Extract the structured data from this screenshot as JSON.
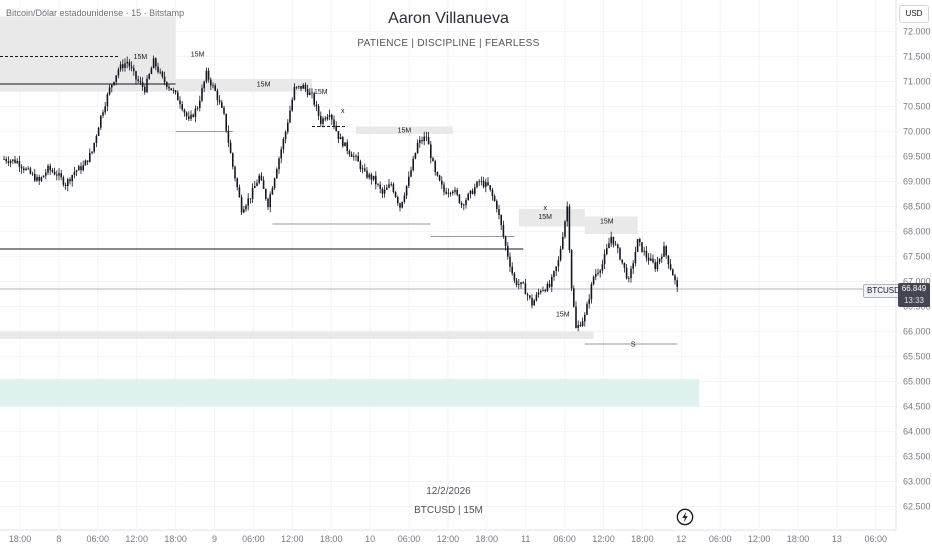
{
  "symbol_title": "Bitcoin/Dólar estadounidense · 15 · Bitstamp",
  "watermark": {
    "title": "Aaron Villanueva",
    "subtitle": "PATIENCE  |  DISCIPLINE  |  FEARLESS",
    "date": "12/2/2026",
    "symbol": "BTCUSD | 15M"
  },
  "currency": "USD",
  "symbol_tag": "BTCUSD",
  "last_price": "66.849",
  "countdown": "13:33",
  "icons": {
    "logo": "tradingview-logo-icon"
  },
  "colors": {
    "candle": "#131722",
    "zone_grey": "#e9e9ea",
    "zone_teal": "#dff2ef",
    "grid": "#f3f4f6"
  },
  "chart_data": {
    "type": "candlestick",
    "title": "",
    "xlabel": "",
    "ylabel": "",
    "ylim": [
      62000,
      72500
    ],
    "y_ticks": [
      "72.000",
      "71.500",
      "71.000",
      "70.500",
      "70.000",
      "69.500",
      "69.000",
      "68.500",
      "68.000",
      "67.500",
      "67.000",
      "66.500",
      "66.000",
      "65.500",
      "65.000",
      "64.500",
      "64.000",
      "63.500",
      "63.000",
      "62.500"
    ],
    "x_ticks": [
      "18:00",
      "8",
      "06:00",
      "12:00",
      "18:00",
      "9",
      "06:00",
      "12:00",
      "18:00",
      "10",
      "06:00",
      "12:00",
      "18:00",
      "11",
      "06:00",
      "12:00",
      "18:00",
      "12",
      "06:00",
      "12:00",
      "18:00",
      "13",
      "06:00"
    ],
    "price_anchors": [
      [
        0,
        69450
      ],
      [
        3,
        69400
      ],
      [
        6,
        69150
      ],
      [
        8,
        69000
      ],
      [
        10,
        69250
      ],
      [
        12,
        69150
      ],
      [
        14,
        68950
      ],
      [
        16,
        69200
      ],
      [
        18,
        69300
      ],
      [
        20,
        69600
      ],
      [
        22,
        70300
      ],
      [
        24,
        70850
      ],
      [
        26,
        71250
      ],
      [
        28,
        71400
      ],
      [
        30,
        71050
      ],
      [
        32,
        70850
      ],
      [
        34,
        71400
      ],
      [
        36,
        71050
      ],
      [
        38,
        70850
      ],
      [
        40,
        70600
      ],
      [
        42,
        70200
      ],
      [
        44,
        70500
      ],
      [
        46,
        71150
      ],
      [
        48,
        70800
      ],
      [
        50,
        70300
      ],
      [
        52,
        69300
      ],
      [
        54,
        68450
      ],
      [
        56,
        68700
      ],
      [
        58,
        69100
      ],
      [
        60,
        68550
      ],
      [
        62,
        69300
      ],
      [
        64,
        70000
      ],
      [
        66,
        70850
      ],
      [
        68,
        70900
      ],
      [
        70,
        70700
      ],
      [
        72,
        70200
      ],
      [
        74,
        70400
      ],
      [
        76,
        69900
      ],
      [
        78,
        69650
      ],
      [
        80,
        69450
      ],
      [
        82,
        69150
      ],
      [
        84,
        69050
      ],
      [
        86,
        68750
      ],
      [
        88,
        68950
      ],
      [
        90,
        68500
      ],
      [
        92,
        69050
      ],
      [
        94,
        69750
      ],
      [
        96,
        69900
      ],
      [
        98,
        69150
      ],
      [
        100,
        68800
      ],
      [
        102,
        68850
      ],
      [
        104,
        68550
      ],
      [
        106,
        68750
      ],
      [
        108,
        69000
      ],
      [
        110,
        68900
      ],
      [
        112,
        68500
      ],
      [
        114,
        67700
      ],
      [
        116,
        67000
      ],
      [
        118,
        66900
      ],
      [
        120,
        66550
      ],
      [
        122,
        66850
      ],
      [
        124,
        66900
      ],
      [
        126,
        67400
      ],
      [
        128,
        68500
      ],
      [
        129,
        66900
      ],
      [
        130,
        66050
      ],
      [
        132,
        66300
      ],
      [
        134,
        67100
      ],
      [
        136,
        67350
      ],
      [
        138,
        67900
      ],
      [
        140,
        67500
      ],
      [
        142,
        67000
      ],
      [
        144,
        67800
      ],
      [
        146,
        67500
      ],
      [
        148,
        67300
      ],
      [
        150,
        67650
      ],
      [
        152,
        67150
      ],
      [
        153,
        66850
      ]
    ],
    "zones": [
      {
        "label": "15M",
        "from": 70800,
        "to": 72300
      },
      {
        "label": "15M",
        "from": 70800,
        "to": 71050
      },
      {
        "label": "15M",
        "from": 69950,
        "to": 70100
      },
      {
        "label": "15M",
        "from": 68100,
        "to": 68450
      },
      {
        "label": "15M",
        "from": 67950,
        "to": 68300
      },
      {
        "label": "",
        "from": 65850,
        "to": 66000
      },
      {
        "label": "",
        "from": 64500,
        "to": 65050
      }
    ],
    "levels": [
      67650,
      68150,
      67900,
      70950,
      70000,
      65750
    ],
    "annotations": [
      "15M",
      "15M",
      "15M",
      "15M",
      "15M",
      "15M",
      "15M",
      "15M",
      "x",
      "x",
      "S"
    ],
    "last_value": 66849,
    "grid": true,
    "legend": "none"
  }
}
